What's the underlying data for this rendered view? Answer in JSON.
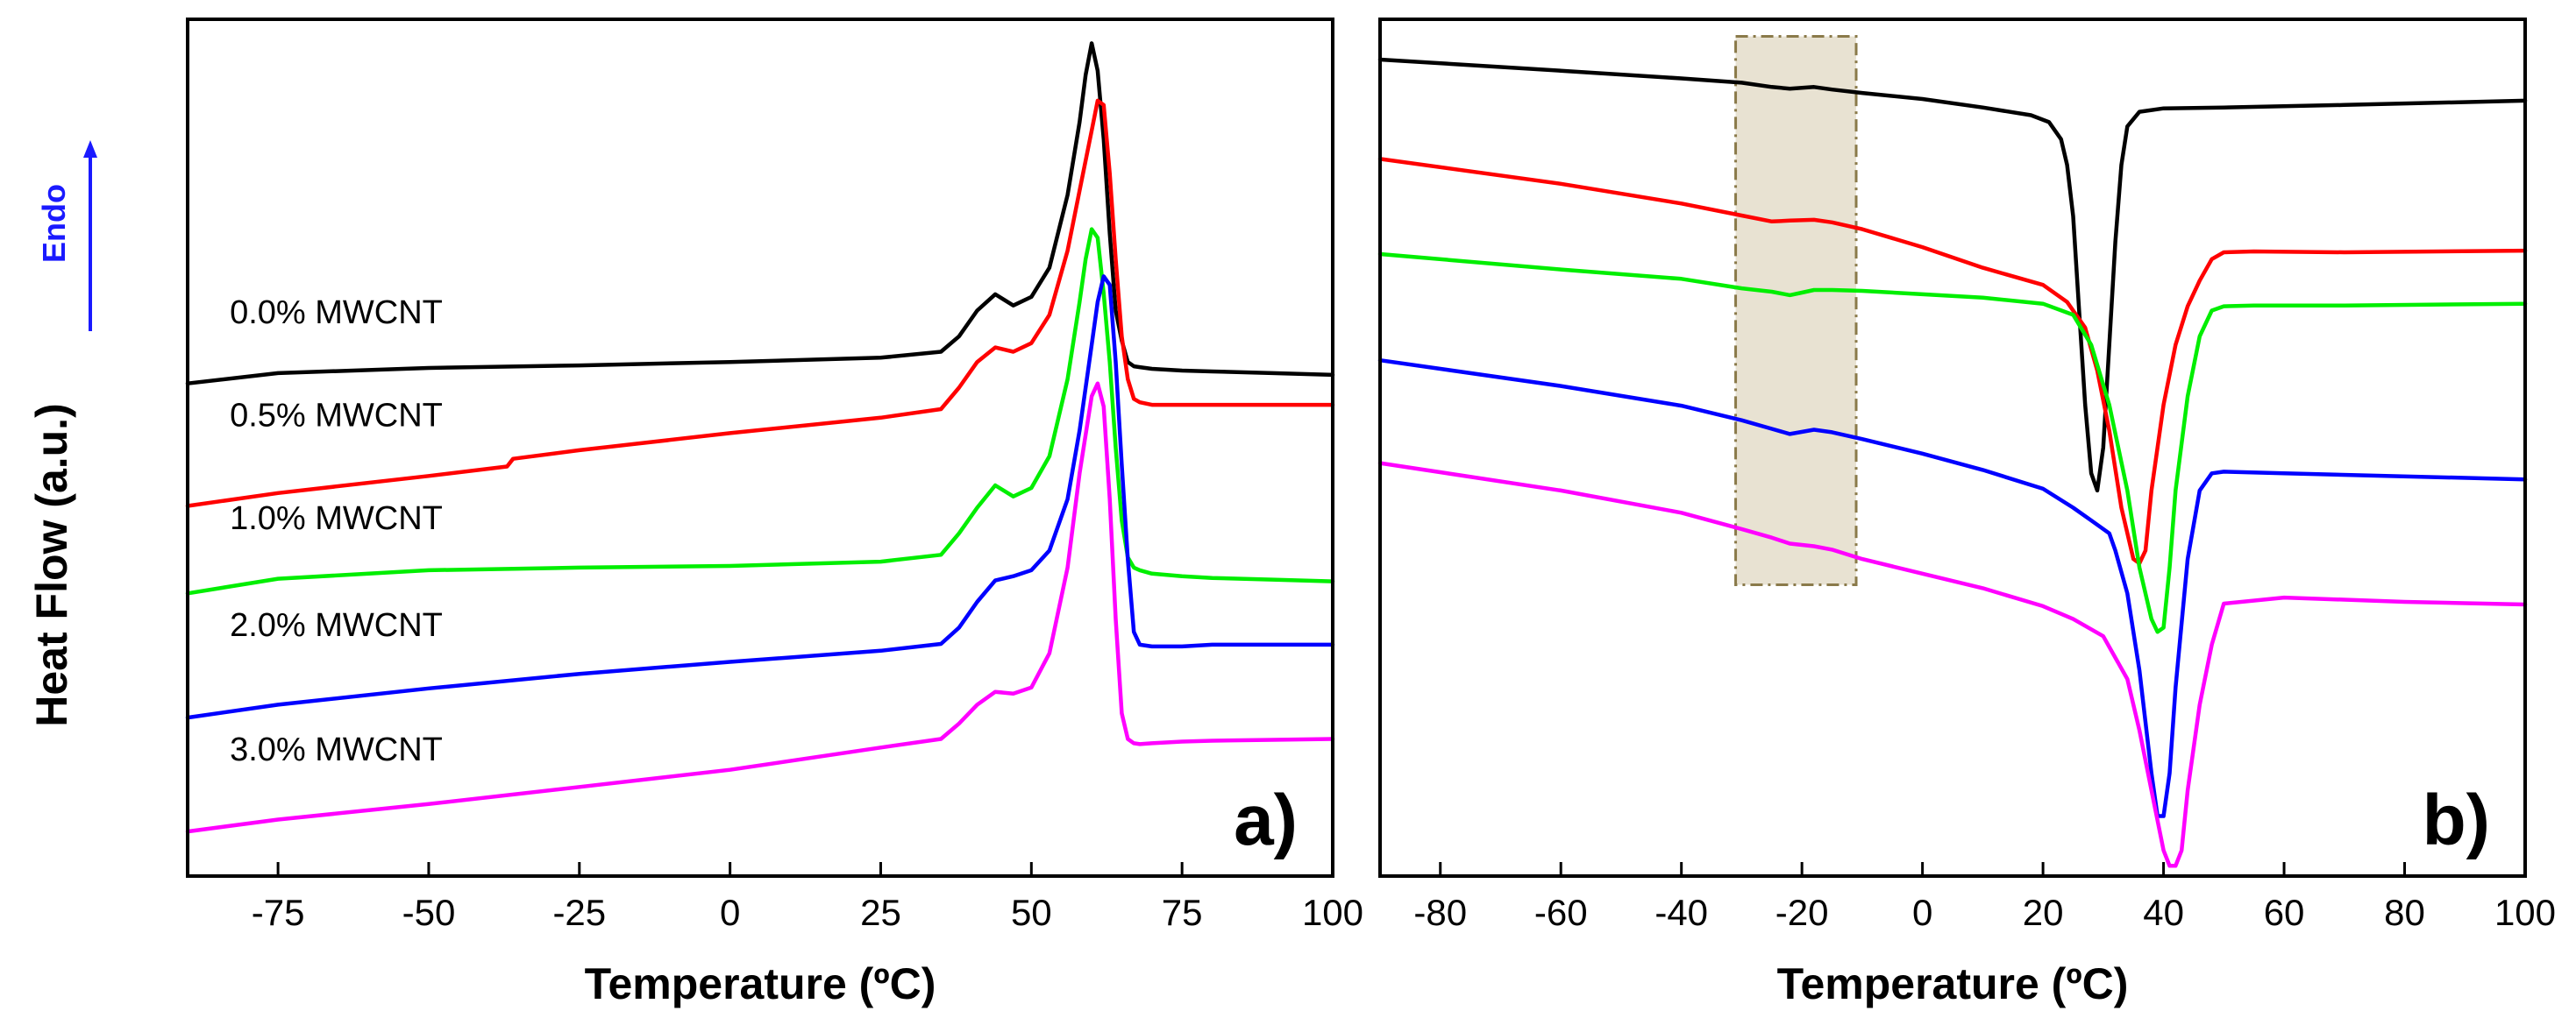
{
  "figure": {
    "ylabel": "Heat Flow (a.u.)",
    "endo_label": "Endo",
    "endo_color": "#1a1aff"
  },
  "chart_data": [
    {
      "type": "line",
      "panel": "a)",
      "xlabel": "Temperature (ºC)",
      "ylabel": "Heat Flow (a.u.)",
      "xlim": [
        -90,
        100
      ],
      "xticks": [
        -75,
        -50,
        -25,
        0,
        25,
        50,
        75,
        100
      ],
      "xtick_labels": [
        "-75",
        "-50",
        "-25",
        "0",
        "25",
        "50",
        "75",
        "100"
      ],
      "ylim": [
        0,
        1
      ],
      "grid": false,
      "series": [
        {
          "name": "0.0% MWCNT",
          "color": "#000000",
          "x": [
            -90,
            -75,
            -50,
            -25,
            0,
            25,
            35,
            38,
            41,
            44,
            47,
            50,
            53,
            56,
            58,
            59,
            60,
            61,
            62,
            63,
            64,
            65,
            66,
            67,
            68,
            70,
            75,
            80,
            90,
            100
          ],
          "y": [
            0.575,
            0.587,
            0.593,
            0.596,
            0.6,
            0.605,
            0.612,
            0.63,
            0.66,
            0.679,
            0.666,
            0.676,
            0.71,
            0.795,
            0.88,
            0.935,
            0.972,
            0.94,
            0.86,
            0.75,
            0.66,
            0.625,
            0.6,
            0.595,
            0.594,
            0.592,
            0.59,
            0.589,
            0.587,
            0.585
          ]
        },
        {
          "name": "0.5% MWCNT",
          "color": "#ff0000",
          "x": [
            -90,
            -75,
            -50,
            -37,
            -36,
            -25,
            0,
            25,
            35,
            38,
            41,
            44,
            47,
            50,
            53,
            56,
            58,
            60,
            61,
            62,
            63,
            64,
            65,
            66,
            67,
            68,
            70,
            75,
            80,
            90,
            100
          ],
          "y": [
            0.432,
            0.447,
            0.467,
            0.478,
            0.487,
            0.497,
            0.517,
            0.535,
            0.545,
            0.57,
            0.6,
            0.617,
            0.612,
            0.622,
            0.655,
            0.73,
            0.8,
            0.87,
            0.905,
            0.9,
            0.82,
            0.72,
            0.63,
            0.58,
            0.557,
            0.553,
            0.55,
            0.55,
            0.55,
            0.55,
            0.55
          ]
        },
        {
          "name": "1.0% MWCNT",
          "color": "#00ee00",
          "x": [
            -90,
            -75,
            -50,
            -25,
            0,
            25,
            35,
            38,
            41,
            44,
            47,
            50,
            53,
            56,
            58,
            59,
            60,
            61,
            62,
            63,
            64,
            65,
            66,
            67,
            68,
            70,
            75,
            80,
            90,
            100
          ],
          "y": [
            0.33,
            0.347,
            0.357,
            0.36,
            0.362,
            0.367,
            0.375,
            0.4,
            0.43,
            0.456,
            0.443,
            0.453,
            0.49,
            0.58,
            0.67,
            0.72,
            0.755,
            0.745,
            0.68,
            0.6,
            0.5,
            0.415,
            0.372,
            0.36,
            0.357,
            0.353,
            0.35,
            0.348,
            0.346,
            0.344
          ]
        },
        {
          "name": "2.0% MWCNT",
          "color": "#0000ff",
          "x": [
            -90,
            -75,
            -50,
            -25,
            0,
            25,
            35,
            38,
            41,
            44,
            47,
            50,
            53,
            56,
            58,
            60,
            61,
            62,
            63,
            64,
            65,
            66,
            67,
            68,
            70,
            75,
            80,
            90,
            100
          ],
          "y": [
            0.185,
            0.2,
            0.219,
            0.236,
            0.25,
            0.263,
            0.271,
            0.29,
            0.32,
            0.345,
            0.35,
            0.357,
            0.38,
            0.44,
            0.52,
            0.62,
            0.67,
            0.7,
            0.69,
            0.6,
            0.48,
            0.37,
            0.285,
            0.27,
            0.268,
            0.268,
            0.27,
            0.27,
            0.27
          ]
        },
        {
          "name": "3.0% MWCNT",
          "color": "#ff00ff",
          "x": [
            -90,
            -75,
            -50,
            -25,
            0,
            25,
            35,
            38,
            41,
            44,
            47,
            50,
            53,
            56,
            58,
            60,
            61,
            62,
            63,
            64,
            65,
            66,
            67,
            68,
            70,
            75,
            80,
            90,
            100
          ],
          "y": [
            0.052,
            0.066,
            0.084,
            0.104,
            0.124,
            0.15,
            0.16,
            0.178,
            0.2,
            0.215,
            0.213,
            0.22,
            0.26,
            0.36,
            0.47,
            0.56,
            0.575,
            0.548,
            0.44,
            0.3,
            0.19,
            0.16,
            0.155,
            0.154,
            0.155,
            0.157,
            0.158,
            0.159,
            0.16
          ]
        }
      ],
      "annotations": [
        {
          "text": "0.0% MWCNT",
          "x": -83,
          "y": 0.645
        },
        {
          "text": "0.5% MWCNT",
          "x": -83,
          "y": 0.525
        },
        {
          "text": "1.0% MWCNT",
          "x": -83,
          "y": 0.405
        },
        {
          "text": "2.0% MWCNT",
          "x": -83,
          "y": 0.28
        },
        {
          "text": "3.0% MWCNT",
          "x": -83,
          "y": 0.135
        }
      ]
    },
    {
      "type": "line",
      "panel": "b)",
      "xlabel": "Temperature (ºC)",
      "xlim": [
        -90,
        100
      ],
      "xticks": [
        -80,
        -60,
        -40,
        -20,
        0,
        20,
        40,
        60,
        80,
        100
      ],
      "xtick_labels": [
        "-80",
        "-60",
        "-40",
        "-20",
        "0",
        "20",
        "40",
        "60",
        "80",
        "100"
      ],
      "ylim": [
        0,
        1
      ],
      "grid": false,
      "highlight_region": {
        "x": [
          -31,
          -11
        ],
        "y": [
          0.34,
          0.98
        ]
      },
      "series": [
        {
          "name": "0.0% MWCNT",
          "color": "#000000",
          "x": [
            -90,
            -60,
            -40,
            -30,
            -25,
            -22,
            -18,
            -15,
            -10,
            0,
            10,
            18,
            21,
            23,
            24,
            25,
            26,
            27,
            28,
            29,
            30,
            31,
            32,
            33,
            34,
            36,
            40,
            50,
            70,
            100
          ],
          "y": [
            0.953,
            0.94,
            0.931,
            0.926,
            0.921,
            0.919,
            0.921,
            0.918,
            0.914,
            0.907,
            0.897,
            0.888,
            0.88,
            0.86,
            0.83,
            0.77,
            0.66,
            0.55,
            0.47,
            0.45,
            0.5,
            0.62,
            0.74,
            0.83,
            0.875,
            0.892,
            0.896,
            0.897,
            0.9,
            0.905
          ]
        },
        {
          "name": "0.5% MWCNT",
          "color": "#ff0000",
          "x": [
            -90,
            -60,
            -40,
            -30,
            -25,
            -22,
            -18,
            -15,
            -10,
            0,
            10,
            20,
            24,
            27,
            29,
            31,
            33,
            35,
            36,
            37,
            38,
            40,
            42,
            44,
            46,
            48,
            50,
            55,
            70,
            100
          ],
          "y": [
            0.837,
            0.808,
            0.785,
            0.771,
            0.764,
            0.765,
            0.766,
            0.763,
            0.755,
            0.734,
            0.71,
            0.69,
            0.67,
            0.64,
            0.59,
            0.52,
            0.43,
            0.37,
            0.365,
            0.38,
            0.45,
            0.55,
            0.62,
            0.665,
            0.695,
            0.72,
            0.728,
            0.729,
            0.728,
            0.73
          ]
        },
        {
          "name": "1.0% MWCNT",
          "color": "#00ee00",
          "x": [
            -90,
            -60,
            -40,
            -30,
            -25,
            -22,
            -20,
            -18,
            -15,
            -10,
            0,
            10,
            20,
            25,
            28,
            31,
            34,
            36,
            38,
            39,
            40,
            41,
            42,
            44,
            46,
            48,
            50,
            55,
            70,
            100
          ],
          "y": [
            0.726,
            0.708,
            0.697,
            0.686,
            0.682,
            0.678,
            0.681,
            0.684,
            0.684,
            0.683,
            0.679,
            0.675,
            0.668,
            0.655,
            0.62,
            0.55,
            0.45,
            0.36,
            0.3,
            0.285,
            0.29,
            0.36,
            0.45,
            0.56,
            0.63,
            0.66,
            0.665,
            0.666,
            0.666,
            0.668
          ]
        },
        {
          "name": "2.0% MWCNT",
          "color": "#0000ff",
          "x": [
            -90,
            -60,
            -40,
            -30,
            -25,
            -22,
            -18,
            -15,
            -10,
            0,
            10,
            20,
            25,
            28,
            31,
            32,
            34,
            36,
            38,
            39,
            40,
            41,
            42,
            44,
            46,
            48,
            50,
            60,
            100
          ],
          "y": [
            0.602,
            0.572,
            0.549,
            0.532,
            0.522,
            0.516,
            0.521,
            0.518,
            0.51,
            0.493,
            0.474,
            0.452,
            0.43,
            0.415,
            0.4,
            0.38,
            0.33,
            0.24,
            0.12,
            0.07,
            0.07,
            0.12,
            0.22,
            0.37,
            0.45,
            0.47,
            0.472,
            0.47,
            0.463
          ]
        },
        {
          "name": "3.0% MWCNT",
          "color": "#ff00ff",
          "x": [
            -90,
            -60,
            -40,
            -30,
            -25,
            -22,
            -18,
            -15,
            -10,
            0,
            10,
            20,
            25,
            30,
            34,
            36,
            38,
            40,
            41,
            42,
            43,
            44,
            46,
            48,
            50,
            60,
            80,
            100
          ],
          "y": [
            0.482,
            0.45,
            0.424,
            0.405,
            0.395,
            0.388,
            0.385,
            0.381,
            0.37,
            0.353,
            0.336,
            0.315,
            0.3,
            0.28,
            0.23,
            0.17,
            0.1,
            0.03,
            0.012,
            0.012,
            0.03,
            0.1,
            0.2,
            0.27,
            0.318,
            0.325,
            0.32,
            0.317
          ]
        }
      ]
    }
  ]
}
